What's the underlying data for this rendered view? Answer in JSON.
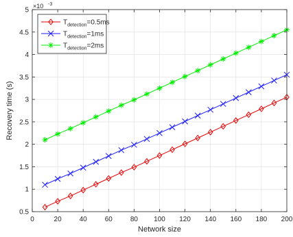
{
  "chart_data": {
    "type": "line",
    "title": "",
    "xlabel": "Network size",
    "ylabel": "Recovery time (s)",
    "y_multiplier": "×10",
    "y_multiplier_exp": "-3",
    "xlim": [
      0,
      200
    ],
    "ylim": [
      0.5,
      5
    ],
    "x_ticks": [
      0,
      20,
      40,
      60,
      80,
      100,
      120,
      140,
      160,
      180,
      200
    ],
    "y_ticks": [
      0.5,
      1,
      1.5,
      2,
      2.5,
      3,
      3.5,
      4,
      4.5,
      5
    ],
    "grid": true,
    "legend_position": "top-left",
    "x": [
      10,
      20,
      30,
      40,
      50,
      60,
      70,
      80,
      90,
      100,
      110,
      120,
      130,
      140,
      150,
      160,
      170,
      180,
      190,
      200
    ],
    "series": [
      {
        "name_main": "T",
        "name_sub": "detection",
        "name_tail": "=0.5ms",
        "color": "#e60000",
        "marker": "diamond",
        "values": [
          0.6,
          0.73,
          0.85,
          0.98,
          1.11,
          1.24,
          1.37,
          1.49,
          1.62,
          1.75,
          1.88,
          2.01,
          2.14,
          2.27,
          2.4,
          2.53,
          2.66,
          2.79,
          2.92,
          3.05
        ]
      },
      {
        "name_main": "T",
        "name_sub": "detection",
        "name_tail": "=1ms",
        "color": "#1a1aff",
        "marker": "x",
        "values": [
          1.1,
          1.23,
          1.35,
          1.48,
          1.61,
          1.74,
          1.87,
          1.99,
          2.12,
          2.25,
          2.38,
          2.51,
          2.64,
          2.77,
          2.9,
          3.03,
          3.16,
          3.29,
          3.42,
          3.55
        ]
      },
      {
        "name_main": "T",
        "name_sub": "detection",
        "name_tail": "=2ms",
        "color": "#00ee00",
        "marker": "asterisk",
        "values": [
          2.1,
          2.23,
          2.35,
          2.48,
          2.61,
          2.74,
          2.87,
          2.99,
          3.12,
          3.25,
          3.38,
          3.51,
          3.64,
          3.77,
          3.9,
          4.03,
          4.16,
          4.29,
          4.42,
          4.55
        ]
      }
    ]
  }
}
